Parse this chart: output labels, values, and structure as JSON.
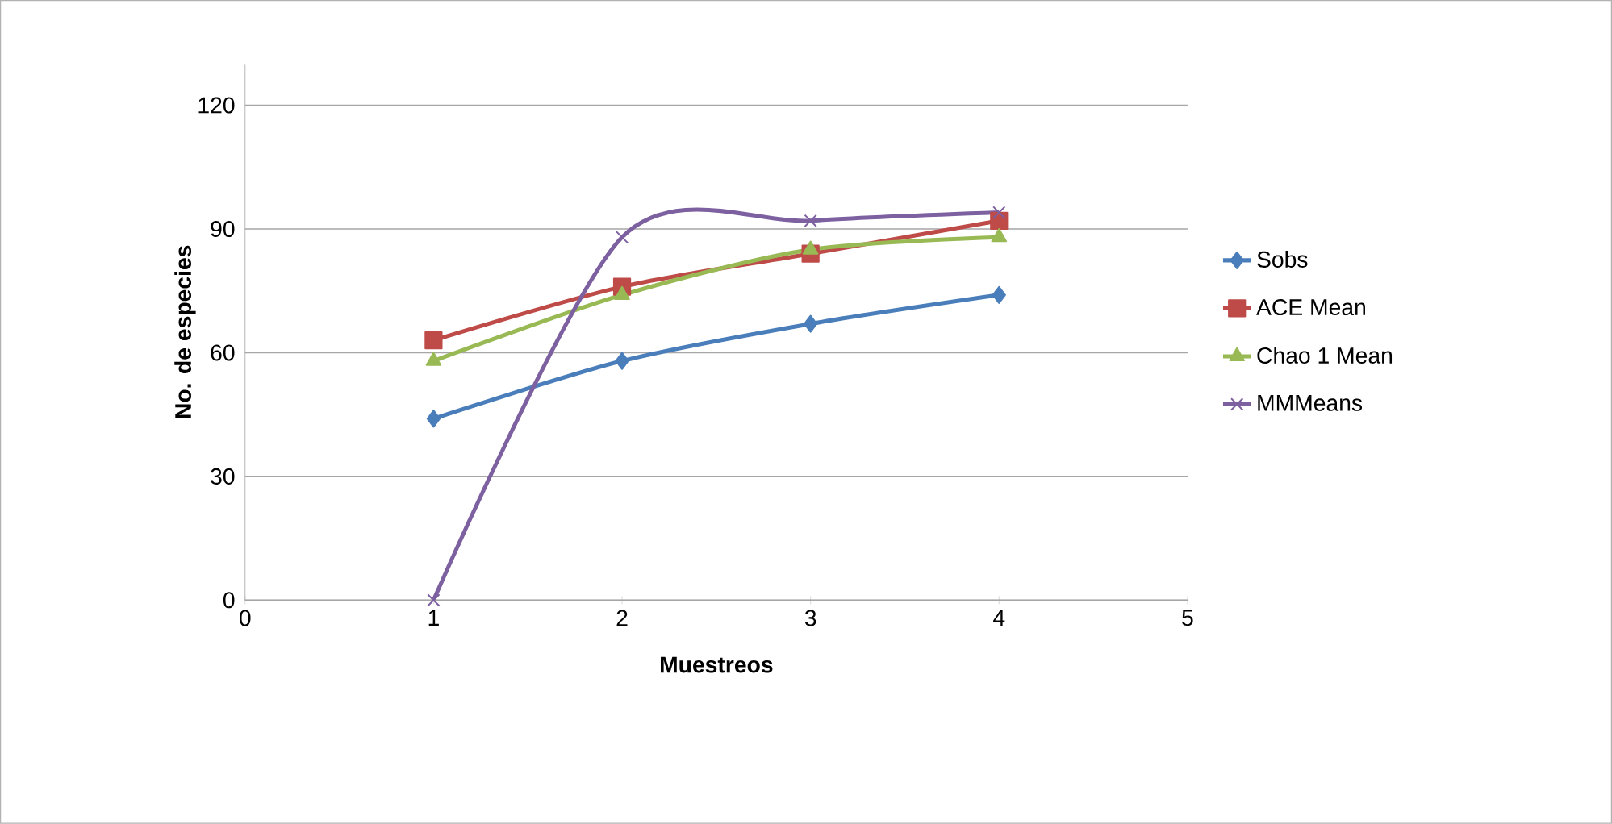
{
  "chart_data": {
    "type": "line",
    "xlabel": "Muestreos",
    "ylabel": "No. de  especies",
    "x": [
      1,
      2,
      3,
      4
    ],
    "series": [
      {
        "name": "Sobs",
        "color": "#4a7ebb",
        "marker": "diamond",
        "values": [
          44,
          58,
          67,
          74
        ]
      },
      {
        "name": "ACE Mean",
        "color": "#be4b48",
        "marker": "square",
        "values": [
          63,
          76,
          84,
          92
        ]
      },
      {
        "name": "Chao 1 Mean",
        "color": "#98b954",
        "marker": "triangle",
        "values": [
          58,
          74,
          85,
          88
        ]
      },
      {
        "name": "MMMeans",
        "color": "#7d60a0",
        "marker": "cross",
        "values": [
          0,
          88,
          92,
          94
        ]
      }
    ],
    "xlim": [
      0,
      5
    ],
    "xticks": [
      0,
      1,
      2,
      3,
      4,
      5
    ],
    "ylim": [
      0,
      130
    ],
    "yticks": [
      0,
      30,
      60,
      90,
      120
    ],
    "grid": "y",
    "legend": "right"
  }
}
